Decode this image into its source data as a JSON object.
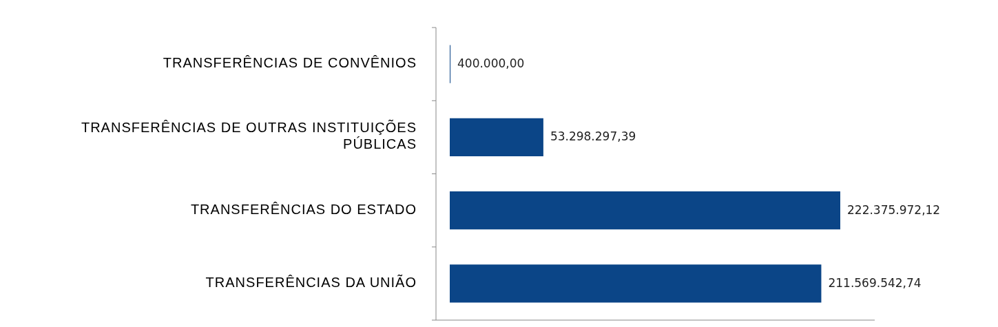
{
  "chart_data": {
    "type": "bar",
    "orientation": "horizontal",
    "categories": [
      "TRANSFERÊNCIAS DE CONVÊNIOS",
      "TRANSFERÊNCIAS DE OUTRAS INSTITUIÇÕES PÚBLICAS",
      "TRANSFERÊNCIAS DO ESTADO",
      "TRANSFERÊNCIAS DA UNIÃO"
    ],
    "values": [
      400000,
      53298297.39,
      222375972.12,
      211569542.74
    ],
    "value_labels": [
      "400.000,00",
      "53.298.297,39",
      "222.375.972,12",
      "211.569.542,74"
    ],
    "color": "#0b4587"
  }
}
